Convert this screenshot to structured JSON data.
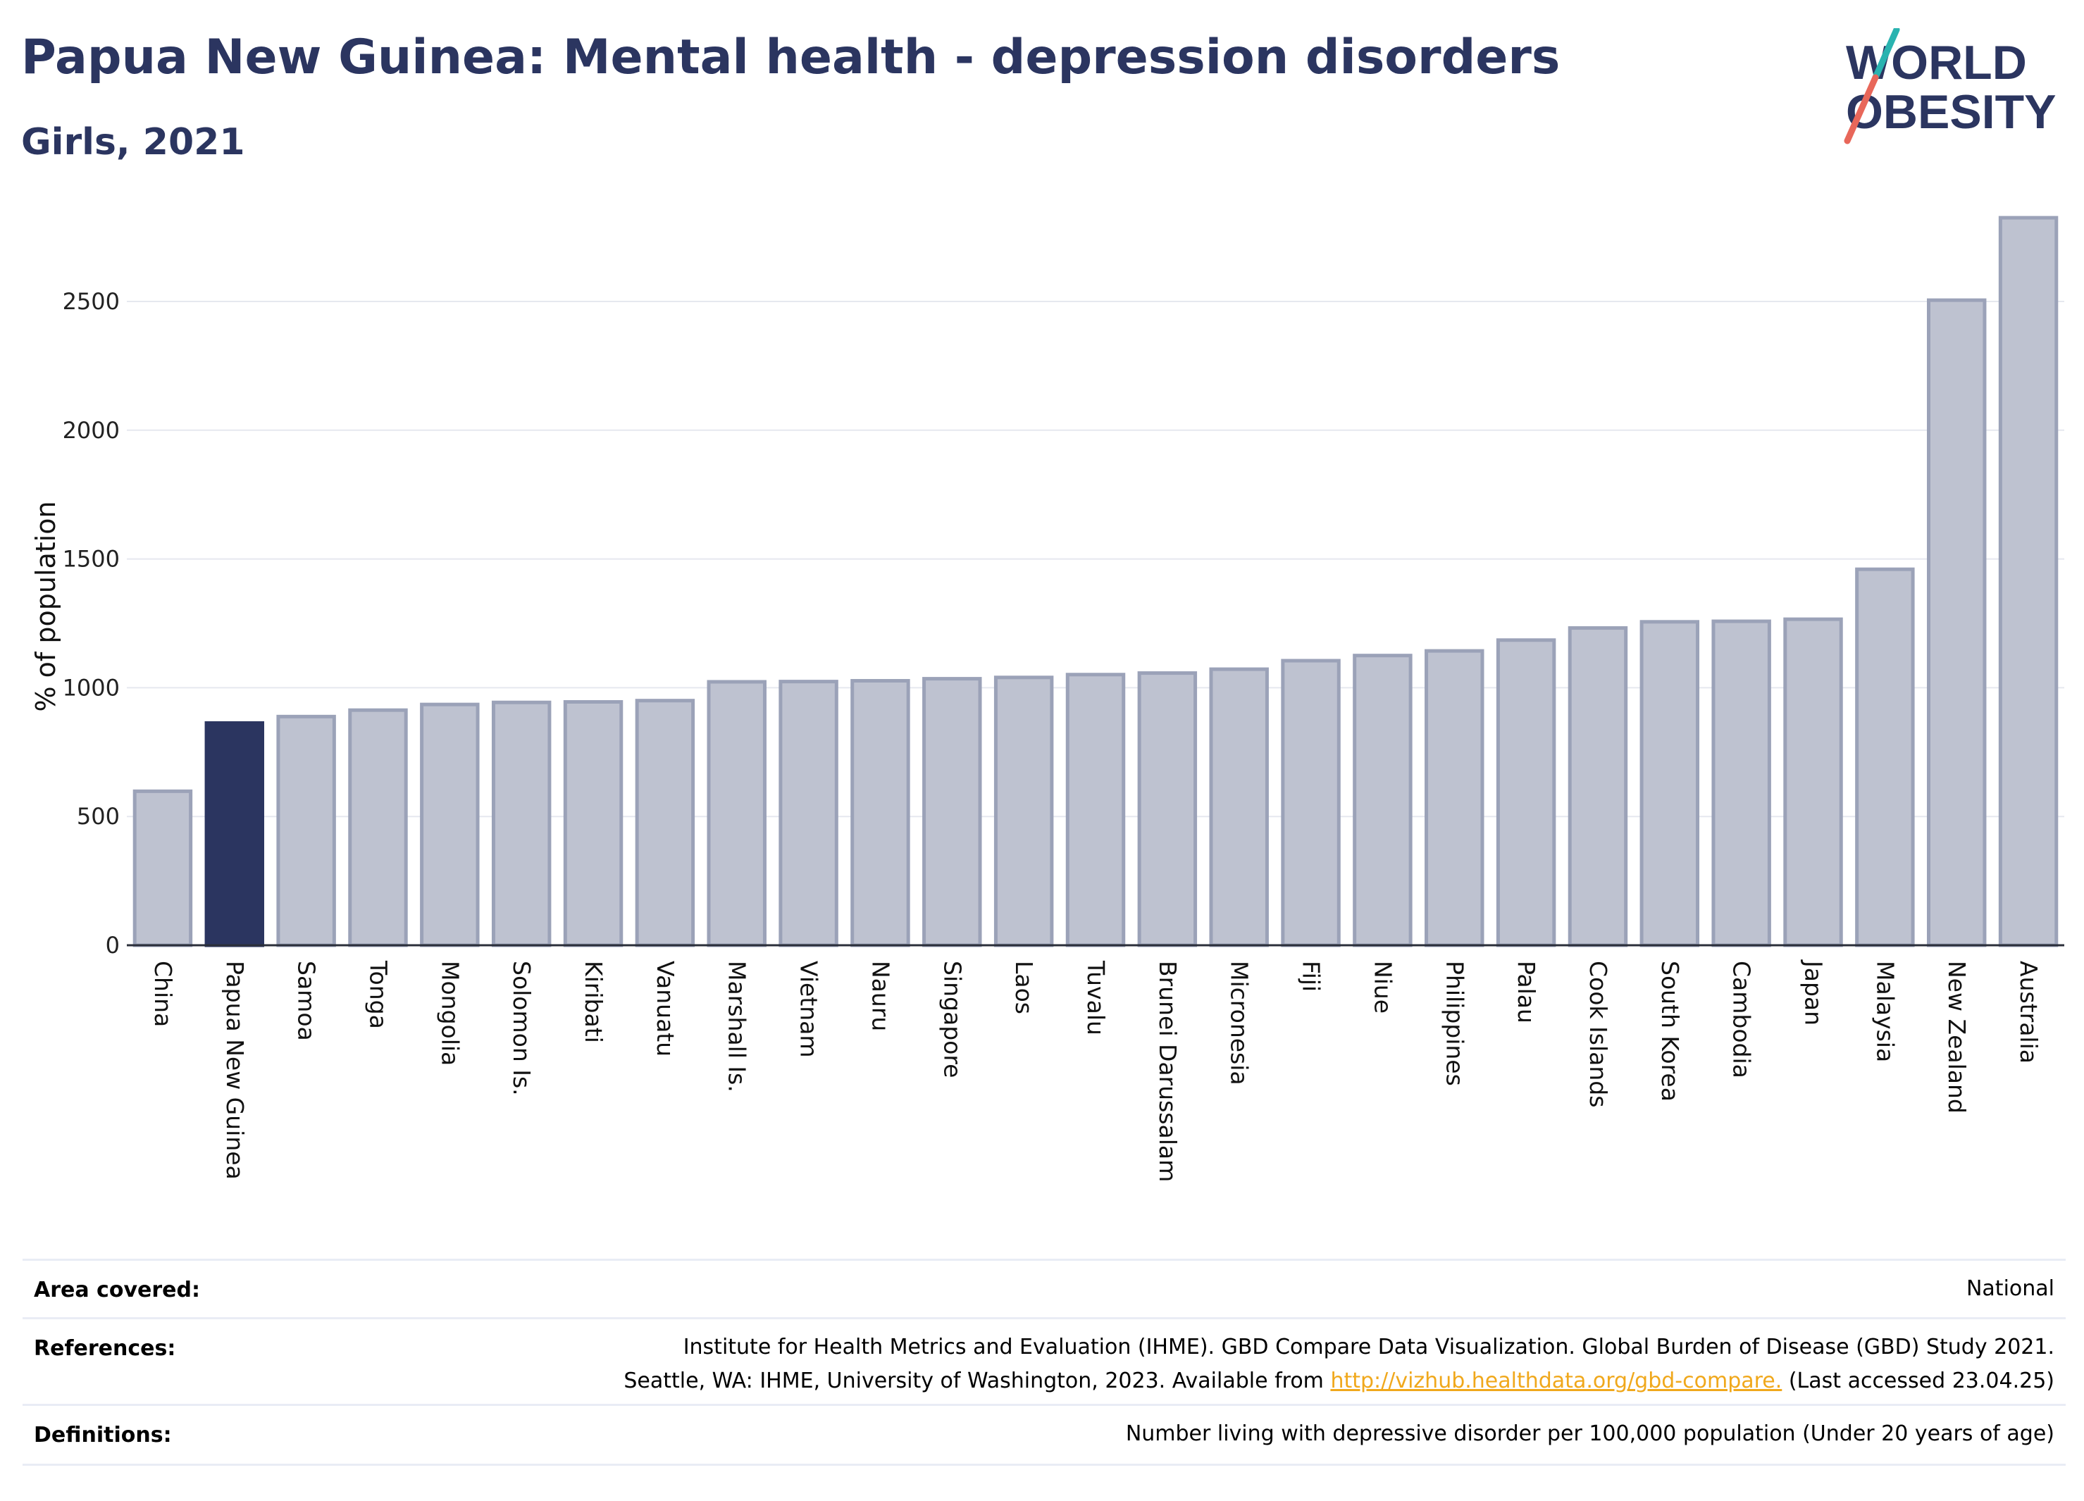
{
  "header": {
    "title": "Papua New Guinea: Mental health - depression disorders",
    "subtitle": "Girls, 2021"
  },
  "logo": {
    "line1": "WORLD",
    "line2": "OBESITY"
  },
  "colors": {
    "highlight": "#2b3560",
    "bar_fill": "#bec2d0",
    "bar_stroke": "#9ba2b8",
    "text_dark": "#2b3560",
    "link": "#f0a81c"
  },
  "chart_data": {
    "type": "bar",
    "title": "Papua New Guinea: Mental health - depression disorders",
    "subtitle": "Girls, 2021",
    "ylabel": "% of population",
    "xlabel": "",
    "ylim": [
      0,
      2850
    ],
    "yticks": [
      0,
      500,
      1000,
      1500,
      2000,
      2500
    ],
    "grid": true,
    "highlight": "Papua New Guinea",
    "categories": [
      "China",
      "Papua New Guinea",
      "Samoa",
      "Tonga",
      "Mongolia",
      "Solomon Is.",
      "Kiribati",
      "Vanuatu",
      "Marshall Is.",
      "Vietnam",
      "Nauru",
      "Singapore",
      "Laos",
      "Tuvalu",
      "Brunei Darussalam",
      "Micronesia",
      "Fiji",
      "Niue",
      "Philippines",
      "Palau",
      "Cook Islands",
      "South Korea",
      "Cambodia",
      "Japan",
      "Malaysia",
      "New Zealand",
      "Australia"
    ],
    "values": [
      598,
      863,
      888,
      913,
      935,
      943,
      945,
      950,
      1023,
      1024,
      1027,
      1035,
      1040,
      1051,
      1057,
      1072,
      1105,
      1125,
      1143,
      1185,
      1232,
      1256,
      1258,
      1266,
      1460,
      2505,
      2825
    ]
  },
  "footer": {
    "area_label": "Area covered:",
    "area_value": "National",
    "references_label": "References:",
    "references_line1": "Institute for Health Metrics and Evaluation (IHME). GBD Compare Data Visualization. Global Burden of Disease (GBD) Study 2021.",
    "references_line2_pre": "Seattle, WA: IHME, University of Washington, 2023. Available from ",
    "references_link": "http://vizhub.healthdata.org/gbd-compare.",
    "references_line2_post": " (Last accessed 23.04.25)",
    "definitions_label": "Definitions:",
    "definitions_value": "Number living with depressive disorder per 100,000 population (Under 20 years of age)"
  }
}
